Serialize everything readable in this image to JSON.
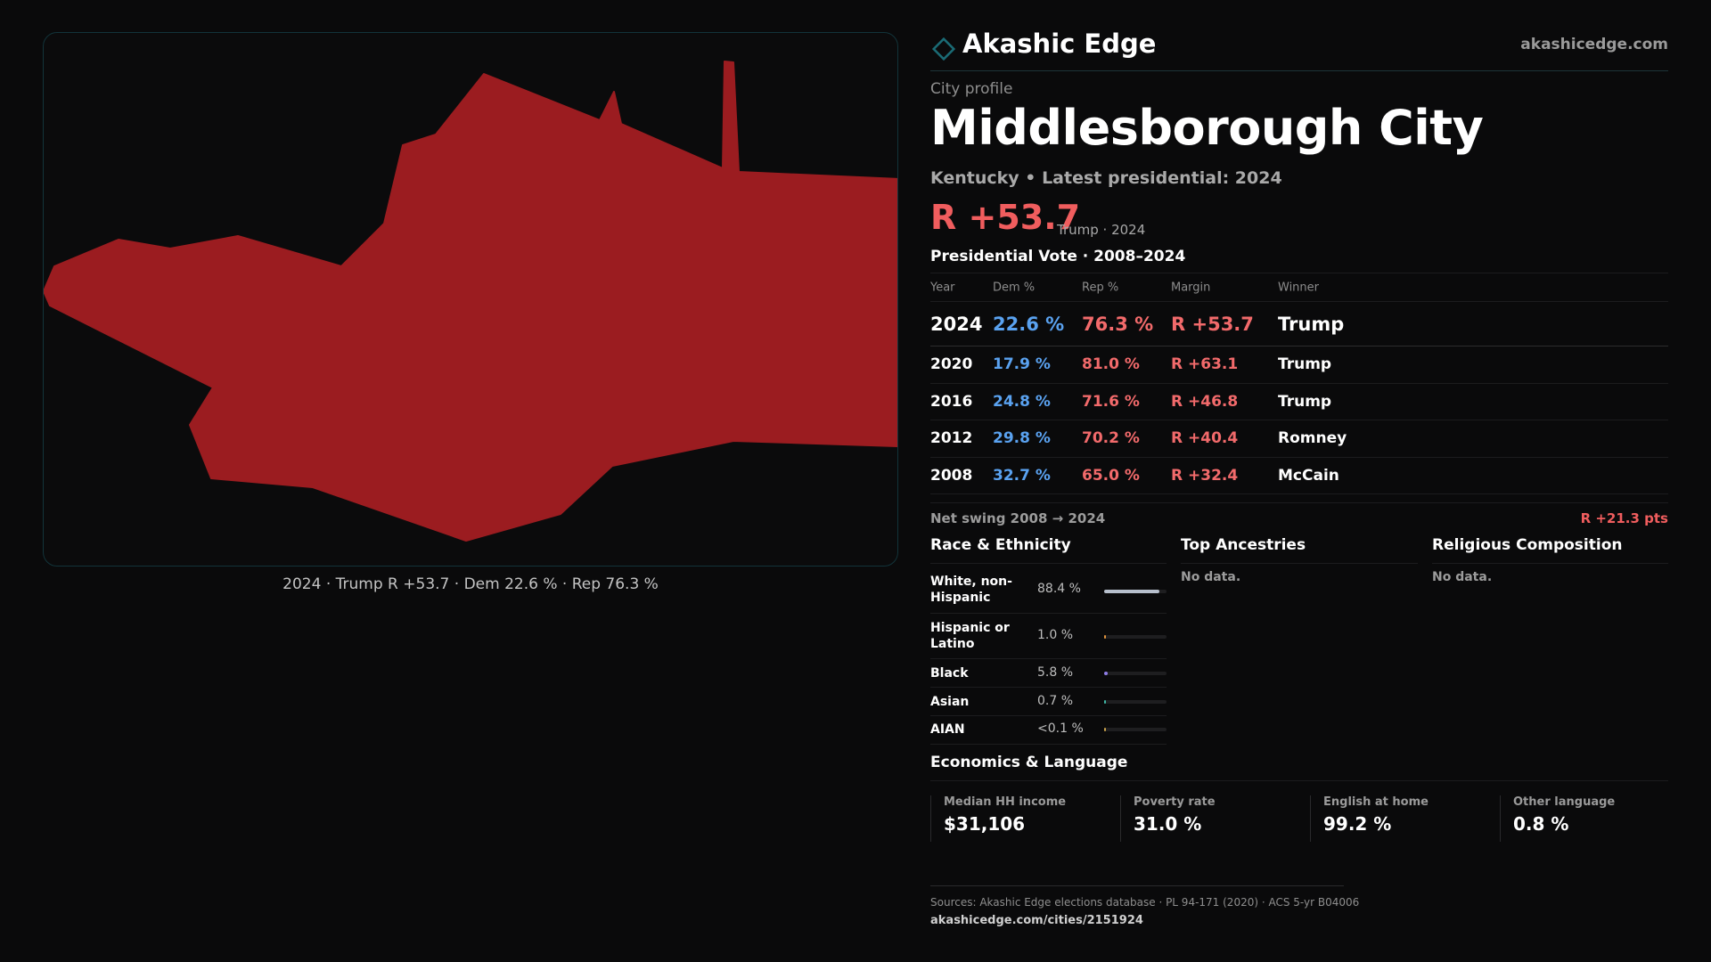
{
  "colors": {
    "accent": "#1a6b75",
    "republican": "#9b1c20",
    "rep_text": "#f26a6b",
    "dem_text": "#5aa2f0"
  },
  "map": {
    "caption": "2024 · Trump R +53.7 · Dem 22.6 % · Rep 76.3 %"
  },
  "brand": {
    "name": "Akashic Edge",
    "url": "akashicedge.com",
    "logo_icon": "diamond-outline-icon"
  },
  "profile": {
    "kicker": "City profile",
    "title": "Middlesborough City",
    "subtitle": "Kentucky • Latest presidential: 2024",
    "margin": "R +53.7",
    "margin_note": "Trump · 2024"
  },
  "presidential": {
    "title": "Presidential Vote · 2008–2024",
    "headers": {
      "year": "Year",
      "dem": "Dem %",
      "rep": "Rep %",
      "margin": "Margin",
      "winner": "Winner"
    },
    "rows": [
      {
        "year": "2024",
        "dem": "22.6 %",
        "rep": "76.3 %",
        "margin": "R +53.7",
        "winner": "Trump"
      },
      {
        "year": "2020",
        "dem": "17.9 %",
        "rep": "81.0 %",
        "margin": "R +63.1",
        "winner": "Trump"
      },
      {
        "year": "2016",
        "dem": "24.8 %",
        "rep": "71.6 %",
        "margin": "R +46.8",
        "winner": "Trump"
      },
      {
        "year": "2012",
        "dem": "29.8 %",
        "rep": "70.2 %",
        "margin": "R +40.4",
        "winner": "Romney"
      },
      {
        "year": "2008",
        "dem": "32.7 %",
        "rep": "65.0 %",
        "margin": "R +32.4",
        "winner": "McCain"
      }
    ],
    "swing_label": "Net swing 2008 → 2024",
    "swing_value": "R +21.3 pts"
  },
  "race": {
    "title": "Race & Ethnicity",
    "rows": [
      {
        "label": "White, non-Hispanic",
        "pct": "88.4 %",
        "share": 0.884,
        "color": "#b7bfcc"
      },
      {
        "label": "Hispanic or Latino",
        "pct": "1.0 %",
        "share": 0.01,
        "color": "#e0933b"
      },
      {
        "label": "Black",
        "pct": "5.8 %",
        "share": 0.058,
        "color": "#8f7ee8"
      },
      {
        "label": "Asian",
        "pct": "0.7 %",
        "share": 0.007,
        "color": "#3fb7a6"
      },
      {
        "label": "AIAN",
        "pct": "<0.1 %",
        "share": 0.0005,
        "color": "#c9a24a"
      }
    ]
  },
  "ancestries": {
    "title": "Top Ancestries",
    "empty": "No data."
  },
  "religion": {
    "title": "Religious Composition",
    "empty": "No data."
  },
  "economics": {
    "title": "Economics & Language",
    "cells": [
      {
        "label": "Median HH income",
        "value": "$31,106"
      },
      {
        "label": "Poverty rate",
        "value": "31.0 %"
      },
      {
        "label": "English at home",
        "value": "99.2 %"
      },
      {
        "label": "Other language",
        "value": "0.8 %"
      }
    ]
  },
  "sources": {
    "text": "Sources: Akashic Edge elections database · PL 94-171 (2020) · ACS 5-yr B04006",
    "url": "akashicedge.com/cities/2151924"
  }
}
